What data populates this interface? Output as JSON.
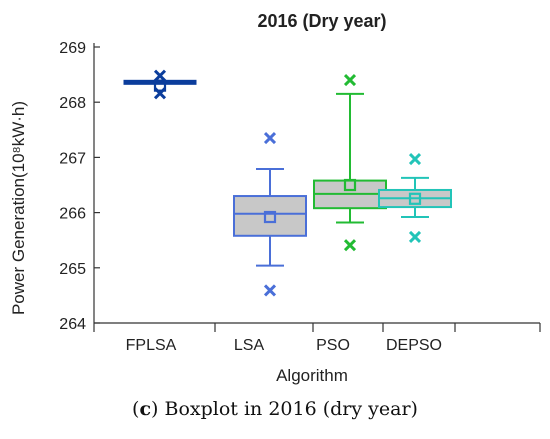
{
  "chart_data": {
    "type": "boxplot",
    "title": "2016 (Dry year)",
    "xlabel": "Algorithm",
    "ylabel": "Power Generation(10⁸kW·h)",
    "ylim": [
      264,
      269
    ],
    "yticks": [
      "264",
      "265",
      "266",
      "267",
      "268",
      "269"
    ],
    "grid": false,
    "categories": [
      "FPLSA",
      "LSA",
      "PSO",
      "DEPSO"
    ],
    "series": [
      {
        "category": "FPLSA",
        "color": "#0b3d9c",
        "min": 268.36,
        "q1": 268.36,
        "median": 268.36,
        "q3": 268.36,
        "max": 268.36,
        "mean": 268.3,
        "outliers": [
          268.48,
          268.16
        ]
      },
      {
        "category": "LSA",
        "color": "#4a6fd8",
        "min": 265.04,
        "q1": 265.58,
        "median": 265.98,
        "q3": 266.3,
        "max": 266.79,
        "mean": 265.92,
        "outliers": [
          267.35,
          264.59
        ]
      },
      {
        "category": "PSO",
        "color": "#22bb33",
        "min": 265.82,
        "q1": 266.08,
        "median": 266.34,
        "q3": 266.58,
        "max": 268.15,
        "mean": 266.5,
        "outliers": [
          268.4,
          265.41
        ]
      },
      {
        "category": "DEPSO",
        "color": "#22c4b8",
        "min": 265.92,
        "q1": 266.1,
        "median": 266.26,
        "q3": 266.41,
        "max": 266.63,
        "mean": 266.25,
        "outliers": [
          266.97,
          265.56
        ]
      }
    ]
  },
  "caption": {
    "label": "c",
    "text": " Boxplot in 2016 (dry year)"
  }
}
